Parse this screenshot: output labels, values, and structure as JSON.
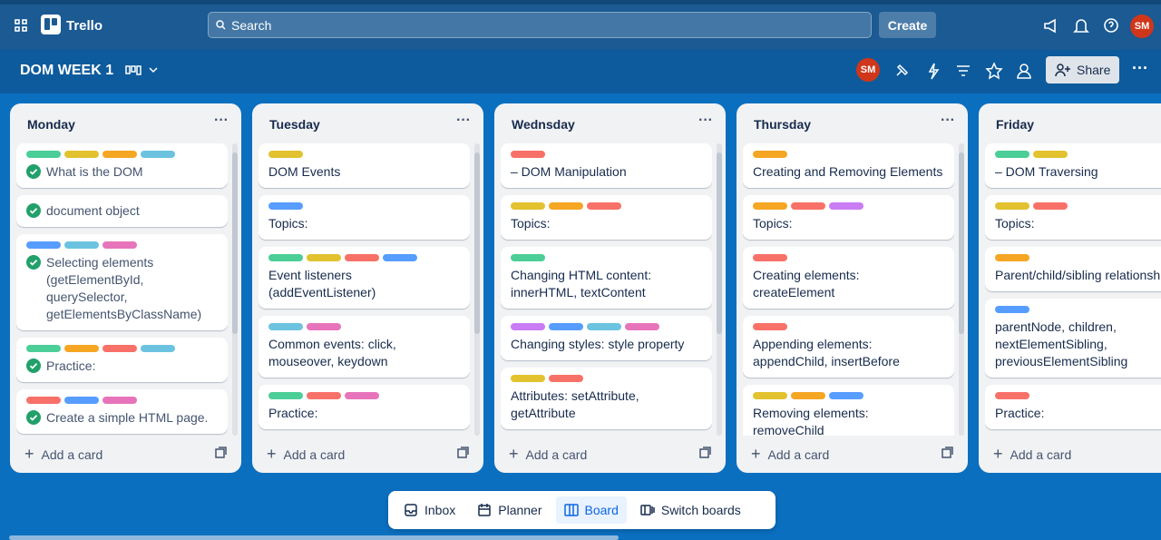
{
  "topbar": {
    "app_name": "Trello",
    "search": "Search",
    "create": "Create",
    "avatar": "SM"
  },
  "board": {
    "title": "DOM WEEK 1",
    "avatar": "SM",
    "share": "Share"
  },
  "label_colors": {
    "green": "#4bce97",
    "yellow": "#e2c22f",
    "orange": "#f5a623",
    "red": "#f87168",
    "purple": "#c97cf4",
    "blue": "#579dff",
    "sky": "#6cc3e0",
    "pink": "#e774bb"
  },
  "lists": [
    {
      "title": "Monday",
      "add_card": "Add a card",
      "cards": [
        {
          "labels": [
            "green",
            "yellow",
            "orange",
            "sky"
          ],
          "text": "What is the DOM",
          "done": true
        },
        {
          "labels": [],
          "text": "document object",
          "done": true
        },
        {
          "labels": [
            "blue",
            "sky",
            "pink"
          ],
          "text": "Selecting elements (getElementById, querySelector, getElementsByClassName)",
          "done": true
        },
        {
          "labels": [
            "green",
            "orange",
            "red",
            "sky"
          ],
          "text": "Practice:",
          "done": true
        },
        {
          "labels": [
            "red",
            "blue",
            "pink"
          ],
          "text": "Create a simple HTML page.",
          "done": true
        },
        {
          "labels": [],
          "done": true
        }
      ]
    },
    {
      "title": "Tuesday",
      "add_card": "Add a card",
      "cards": [
        {
          "labels": [
            "yellow"
          ],
          "text": "DOM Events"
        },
        {
          "labels": [
            "blue"
          ],
          "text": "Topics:"
        },
        {
          "labels": [
            "green",
            "yellow",
            "red",
            "blue"
          ],
          "text": "Event listeners (addEventListener)"
        },
        {
          "labels": [
            "sky",
            "pink"
          ],
          "text": "Common events: click, mouseover, keydown"
        },
        {
          "labels": [
            "green",
            "red",
            "pink"
          ],
          "text": "Practice:"
        },
        {
          "labels": [
            "green",
            "purple"
          ]
        }
      ]
    },
    {
      "title": "Wednsday",
      "add_card": "Add a card",
      "cards": [
        {
          "labels": [
            "red"
          ],
          "text": "– DOM Manipulation"
        },
        {
          "labels": [
            "yellow",
            "orange",
            "red"
          ],
          "text": "Topics:"
        },
        {
          "labels": [
            "green"
          ],
          "text": "Changing HTML content: innerHTML, textContent"
        },
        {
          "labels": [
            "purple",
            "blue",
            "sky",
            "pink"
          ],
          "text": "Changing styles: style property"
        },
        {
          "labels": [
            "yellow",
            "red"
          ],
          "text": "Attributes: setAttribute, getAttribute"
        },
        {
          "labels": []
        }
      ]
    },
    {
      "title": "Thursday",
      "add_card": "Add a card",
      "cards": [
        {
          "labels": [
            "orange"
          ],
          "text": "Creating and Removing Elements"
        },
        {
          "labels": [
            "orange",
            "red",
            "purple"
          ],
          "text": "Topics:"
        },
        {
          "labels": [
            "red"
          ],
          "text": "Creating elements: createElement"
        },
        {
          "labels": [
            "red"
          ],
          "text": "Appending elements: appendChild, insertBefore"
        },
        {
          "labels": [
            "yellow",
            "orange",
            "blue"
          ],
          "text": "Removing elements: removeChild"
        }
      ]
    },
    {
      "title": "Friday",
      "add_card": "Add a card",
      "cards": [
        {
          "labels": [
            "green",
            "yellow"
          ],
          "text": "– DOM Traversing"
        },
        {
          "labels": [
            "yellow",
            "red"
          ],
          "text": "Topics:"
        },
        {
          "labels": [
            "orange"
          ],
          "text": "Parent/child/sibling relationships"
        },
        {
          "labels": [
            "blue"
          ],
          "text": "parentNode, children, nextElementSibling, previousElementSibling"
        },
        {
          "labels": [
            "red"
          ],
          "text": "Practice:"
        },
        {
          "labels": []
        }
      ]
    }
  ],
  "bottom_nav": {
    "items": [
      "Inbox",
      "Planner",
      "Board",
      "Switch boards"
    ],
    "active": 2
  }
}
